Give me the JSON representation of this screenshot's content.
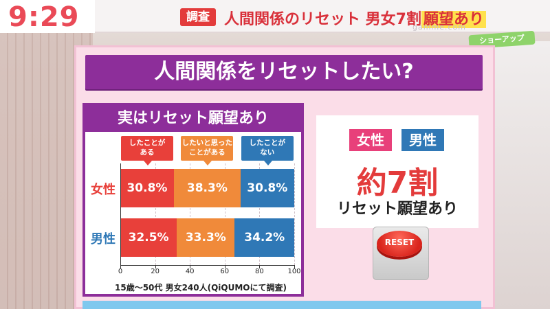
{
  "header": {
    "time": "9:29",
    "tag": "調査",
    "headline_main": "人間関係のリセット 男女7割",
    "headline_highlight": "願望あり",
    "watermark": "gamme.com",
    "show_logo": "ショーアップ"
  },
  "board": {
    "title": "人間関係をリセットしたい?",
    "panel_title": "実はリセット願望あり",
    "note": "15歳〜50代 男女240人(QiQUMOにて調査)"
  },
  "card": {
    "badge_female": "女性",
    "badge_male": "男性",
    "big_value": "約7割",
    "subtitle": "リセット願望あり",
    "button_label": "RESET"
  },
  "colors": {
    "purple": "#8d2e9a",
    "red": "#e8403a",
    "orange": "#f08a3a",
    "blue": "#2f78b6",
    "female_label": "#e8403a",
    "male_label": "#2f78b6"
  },
  "chart_data": {
    "type": "bar",
    "orientation": "horizontal",
    "stacked": true,
    "title": "実はリセット願望あり",
    "categories": [
      "女性",
      "男性"
    ],
    "series": [
      {
        "name": "したことがある",
        "values": [
          30.8,
          32.5
        ],
        "labels": [
          "30.8%",
          "32.5%"
        ]
      },
      {
        "name": "したいと思ったことがある",
        "values": [
          38.3,
          33.3
        ],
        "labels": [
          "38.3%",
          "33.3%"
        ]
      },
      {
        "name": "したことがない",
        "values": [
          30.8,
          34.2
        ],
        "labels": [
          "30.8%",
          "34.2%"
        ]
      }
    ],
    "xlim": [
      0,
      100
    ],
    "xticks": [
      "0",
      "20",
      "40",
      "60",
      "80",
      "100"
    ],
    "legend_placement": "top",
    "legend_lines": [
      [
        "したことが",
        "ある"
      ],
      [
        "したいと思った",
        "ことがある"
      ],
      [
        "したことが",
        "ない"
      ]
    ]
  }
}
